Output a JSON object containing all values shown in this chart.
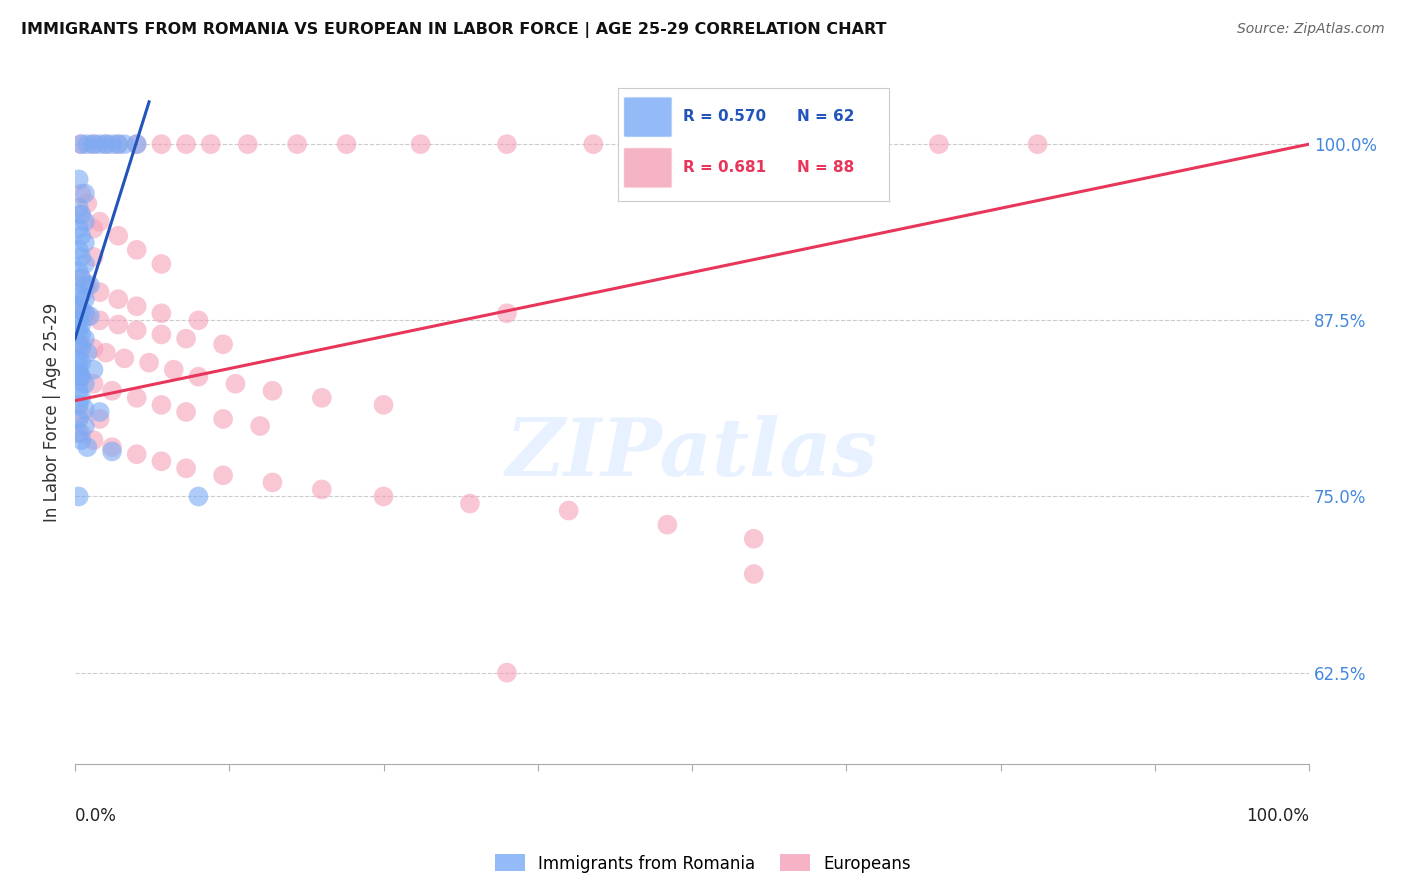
{
  "title": "IMMIGRANTS FROM ROMANIA VS EUROPEAN IN LABOR FORCE | AGE 25-29 CORRELATION CHART",
  "source": "Source: ZipAtlas.com",
  "ylabel": "In Labor Force | Age 25-29",
  "legend_R_blue": "0.570",
  "legend_N_blue": "62",
  "legend_R_pink": "0.681",
  "legend_N_pink": "88",
  "blue_color": "#7aaaf5",
  "pink_color": "#f5a0b8",
  "blue_line_color": "#2255bb",
  "pink_line_color": "#e8365a",
  "blue_scatter": [
    [
      0.5,
      1.0
    ],
    [
      1.0,
      1.0
    ],
    [
      1.5,
      1.0
    ],
    [
      2.0,
      1.0
    ],
    [
      2.5,
      1.0
    ],
    [
      3.0,
      1.0
    ],
    [
      3.5,
      1.0
    ],
    [
      4.0,
      1.0
    ],
    [
      5.0,
      1.0
    ],
    [
      0.3,
      0.975
    ],
    [
      0.8,
      0.965
    ],
    [
      0.3,
      0.955
    ],
    [
      0.5,
      0.95
    ],
    [
      0.8,
      0.945
    ],
    [
      0.3,
      0.94
    ],
    [
      0.5,
      0.935
    ],
    [
      0.8,
      0.93
    ],
    [
      0.3,
      0.925
    ],
    [
      0.5,
      0.92
    ],
    [
      0.8,
      0.915
    ],
    [
      0.3,
      0.91
    ],
    [
      0.5,
      0.905
    ],
    [
      0.8,
      0.9
    ],
    [
      1.2,
      0.9
    ],
    [
      0.3,
      0.895
    ],
    [
      0.5,
      0.892
    ],
    [
      0.8,
      0.89
    ],
    [
      0.3,
      0.885
    ],
    [
      0.5,
      0.882
    ],
    [
      0.8,
      0.88
    ],
    [
      1.2,
      0.878
    ],
    [
      0.3,
      0.875
    ],
    [
      0.5,
      0.872
    ],
    [
      0.3,
      0.868
    ],
    [
      0.5,
      0.865
    ],
    [
      0.8,
      0.862
    ],
    [
      0.3,
      0.858
    ],
    [
      0.5,
      0.855
    ],
    [
      1.0,
      0.852
    ],
    [
      0.3,
      0.848
    ],
    [
      0.5,
      0.845
    ],
    [
      0.3,
      0.842
    ],
    [
      1.5,
      0.84
    ],
    [
      0.3,
      0.838
    ],
    [
      0.5,
      0.835
    ],
    [
      0.3,
      0.832
    ],
    [
      0.8,
      0.83
    ],
    [
      0.3,
      0.825
    ],
    [
      0.5,
      0.82
    ],
    [
      0.3,
      0.815
    ],
    [
      0.8,
      0.812
    ],
    [
      2.0,
      0.81
    ],
    [
      0.3,
      0.805
    ],
    [
      0.8,
      0.8
    ],
    [
      0.3,
      0.795
    ],
    [
      0.5,
      0.79
    ],
    [
      1.0,
      0.785
    ],
    [
      3.0,
      0.782
    ],
    [
      0.3,
      0.75
    ],
    [
      10.0,
      0.75
    ]
  ],
  "pink_scatter": [
    [
      0.5,
      1.0
    ],
    [
      1.5,
      1.0
    ],
    [
      2.5,
      1.0
    ],
    [
      3.5,
      1.0
    ],
    [
      5.0,
      1.0
    ],
    [
      7.0,
      1.0
    ],
    [
      9.0,
      1.0
    ],
    [
      11.0,
      1.0
    ],
    [
      14.0,
      1.0
    ],
    [
      18.0,
      1.0
    ],
    [
      22.0,
      1.0
    ],
    [
      28.0,
      1.0
    ],
    [
      35.0,
      1.0
    ],
    [
      42.0,
      1.0
    ],
    [
      50.0,
      1.0
    ],
    [
      60.0,
      1.0
    ],
    [
      70.0,
      1.0
    ],
    [
      78.0,
      1.0
    ],
    [
      0.5,
      0.965
    ],
    [
      1.0,
      0.958
    ],
    [
      2.0,
      0.945
    ],
    [
      3.5,
      0.935
    ],
    [
      5.0,
      0.925
    ],
    [
      7.0,
      0.915
    ],
    [
      0.5,
      0.95
    ],
    [
      1.5,
      0.94
    ],
    [
      0.5,
      0.905
    ],
    [
      1.0,
      0.9
    ],
    [
      2.0,
      0.895
    ],
    [
      3.5,
      0.89
    ],
    [
      5.0,
      0.885
    ],
    [
      7.0,
      0.88
    ],
    [
      10.0,
      0.875
    ],
    [
      0.5,
      0.882
    ],
    [
      1.0,
      0.878
    ],
    [
      2.0,
      0.875
    ],
    [
      3.5,
      0.872
    ],
    [
      5.0,
      0.868
    ],
    [
      7.0,
      0.865
    ],
    [
      9.0,
      0.862
    ],
    [
      12.0,
      0.858
    ],
    [
      0.5,
      0.858
    ],
    [
      1.5,
      0.855
    ],
    [
      2.5,
      0.852
    ],
    [
      4.0,
      0.848
    ],
    [
      6.0,
      0.845
    ],
    [
      8.0,
      0.84
    ],
    [
      10.0,
      0.835
    ],
    [
      13.0,
      0.83
    ],
    [
      16.0,
      0.825
    ],
    [
      20.0,
      0.82
    ],
    [
      25.0,
      0.815
    ],
    [
      0.5,
      0.835
    ],
    [
      1.5,
      0.83
    ],
    [
      3.0,
      0.825
    ],
    [
      5.0,
      0.82
    ],
    [
      7.0,
      0.815
    ],
    [
      9.0,
      0.81
    ],
    [
      12.0,
      0.805
    ],
    [
      15.0,
      0.8
    ],
    [
      0.5,
      0.808
    ],
    [
      2.0,
      0.805
    ],
    [
      0.5,
      0.795
    ],
    [
      1.5,
      0.79
    ],
    [
      3.0,
      0.785
    ],
    [
      5.0,
      0.78
    ],
    [
      7.0,
      0.775
    ],
    [
      9.0,
      0.77
    ],
    [
      12.0,
      0.765
    ],
    [
      16.0,
      0.76
    ],
    [
      20.0,
      0.755
    ],
    [
      25.0,
      0.75
    ],
    [
      32.0,
      0.745
    ],
    [
      40.0,
      0.74
    ],
    [
      48.0,
      0.73
    ],
    [
      55.0,
      0.72
    ],
    [
      1.5,
      0.92
    ],
    [
      35.0,
      0.88
    ],
    [
      55.0,
      0.695
    ],
    [
      35.0,
      0.625
    ]
  ],
  "blue_line_x": [
    0,
    6
  ],
  "blue_line_y": [
    0.862,
    1.03
  ],
  "pink_line_x": [
    0,
    100
  ],
  "pink_line_y": [
    0.818,
    1.0
  ],
  "xlim": [
    0,
    100
  ],
  "ylim": [
    0.56,
    1.06
  ],
  "yticks": [
    0.625,
    0.75,
    0.875,
    1.0
  ],
  "ytick_labels": [
    "62.5%",
    "75.0%",
    "87.5%",
    "100.0%"
  ]
}
